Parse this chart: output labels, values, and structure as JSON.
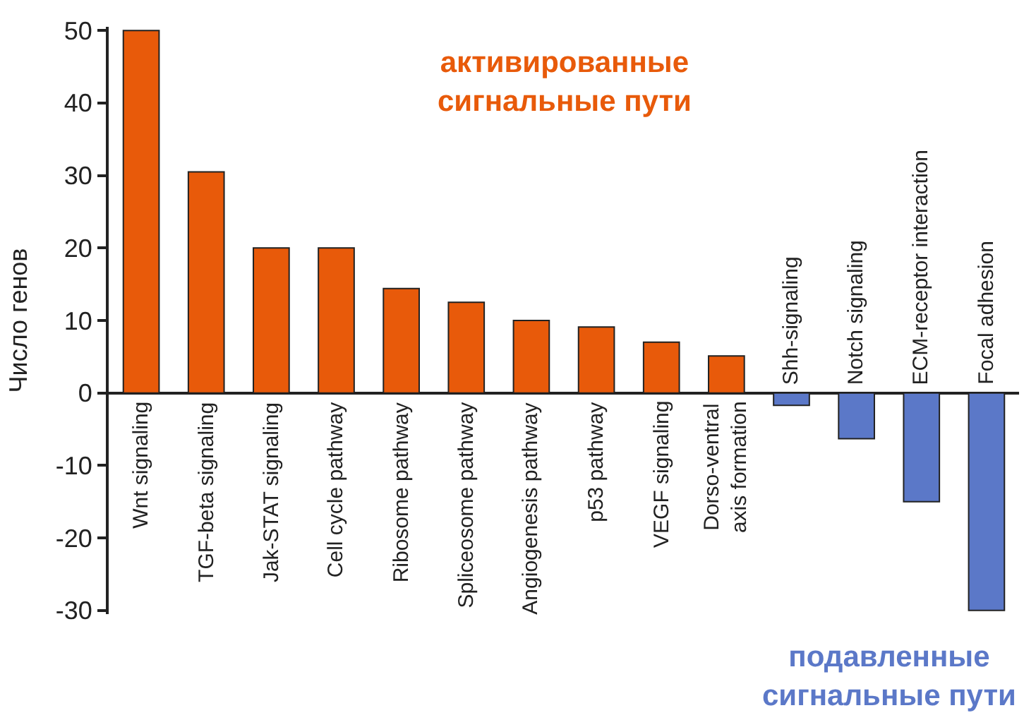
{
  "chart_data": {
    "type": "bar",
    "ylabel": "Число генов",
    "categories": [
      "Wnt signaling",
      "TGF-beta signaling",
      "Jak-STAT signaling",
      "Cell cycle pathway",
      "Ribosome pathway",
      "Spliceosome pathway",
      "Angiogenesis pathway",
      "p53 pathway",
      "VEGF signaling",
      "Dorso-ventral\naxis formation",
      "Shh-signaling",
      "Notch signaling",
      "ECM-receptor interaction",
      "Focal adhesion"
    ],
    "values": [
      50,
      30.5,
      20,
      20,
      14.4,
      12.5,
      10,
      9.1,
      7,
      5.1,
      -1.7,
      -6.3,
      -15,
      -30
    ],
    "colors": [
      "#e85a0a",
      "#e85a0a",
      "#e85a0a",
      "#e85a0a",
      "#e85a0a",
      "#e85a0a",
      "#e85a0a",
      "#e85a0a",
      "#e85a0a",
      "#e85a0a",
      "#5b78c8",
      "#5b78c8",
      "#5b78c8",
      "#5b78c8"
    ],
    "annotations": [
      "активированные\nсигнальные пути",
      "подавленные\nсигнальные пути"
    ],
    "ylim": [
      -30.5,
      50.5
    ],
    "yticks": [
      -30,
      -20,
      -10,
      0,
      10,
      20,
      30,
      40,
      50
    ]
  }
}
